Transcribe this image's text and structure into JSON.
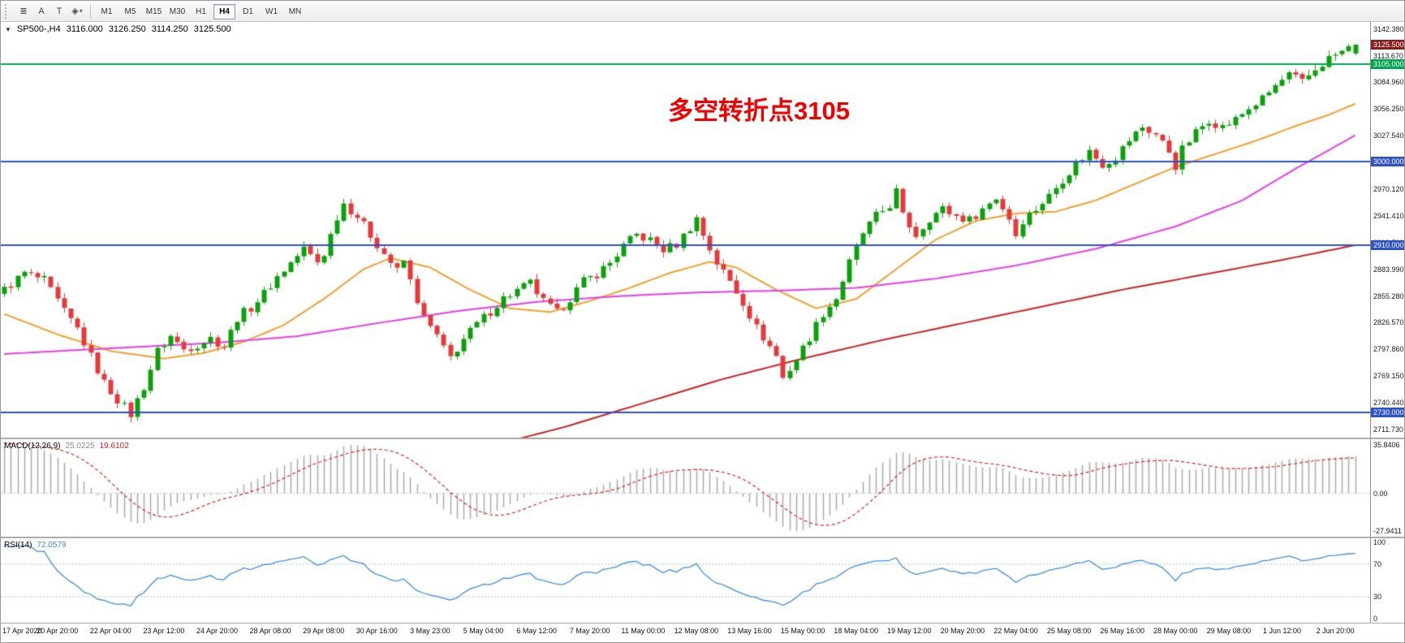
{
  "toolbar": {
    "tools": [
      {
        "name": "chart-list-button",
        "glyph": "≣"
      },
      {
        "name": "text-label-button",
        "glyph": "A"
      },
      {
        "name": "text-tool-button",
        "glyph": "T"
      },
      {
        "name": "shapes-dropdown-button",
        "glyph": "◈",
        "caret": "▾"
      }
    ],
    "timeframes": [
      "M1",
      "M5",
      "M15",
      "M30",
      "H1",
      "H4",
      "D1",
      "W1",
      "MN"
    ],
    "active_timeframe": "H4"
  },
  "quote": {
    "collapse_glyph": "▼",
    "symbol_period": "SP500-,H4",
    "open": "3116.000",
    "high": "3126.250",
    "low": "3114.250",
    "close": "3125.500"
  },
  "annotation": {
    "text": "多空转折点3105",
    "color": "#f10000"
  },
  "price_axis": {
    "min": 2703,
    "max": 3150,
    "ticks": [
      "3142.380",
      "3113.670",
      "3084.960",
      "3056.250",
      "3027.540",
      "2998.830",
      "2970.120",
      "2941.410",
      "2912.700",
      "2883.990",
      "2855.280",
      "2826.570",
      "2797.860",
      "2769.150",
      "2740.440",
      "2711.730"
    ],
    "badges": [
      {
        "label": "3125.500",
        "price": 3125.5,
        "color": "#8b1c1c"
      },
      {
        "label": "3105.000",
        "price": 3105,
        "color": "#00a651"
      },
      {
        "label": "3000.000",
        "price": 3000,
        "color": "#2e52c8"
      },
      {
        "label": "2910.000",
        "price": 2910,
        "color": "#2e52c8"
      },
      {
        "label": "2730.000",
        "price": 2730,
        "color": "#2e52c8"
      }
    ]
  },
  "chart_data": {
    "type": "candlestick",
    "symbol": "SP500-",
    "period": "H4",
    "up_color": "#0da00d",
    "down_color": "#e23b3b",
    "visible_count": 204,
    "prehistory_count": 40,
    "close_waypoints": [
      [
        -40,
        2642
      ],
      [
        -32,
        2700
      ],
      [
        -24,
        2752
      ],
      [
        -16,
        2798
      ],
      [
        -8,
        2840
      ],
      [
        -2,
        2856
      ],
      [
        0,
        2862
      ],
      [
        3,
        2880
      ],
      [
        6,
        2872
      ],
      [
        9,
        2838
      ],
      [
        11,
        2820
      ],
      [
        13,
        2790
      ],
      [
        15,
        2762
      ],
      [
        17,
        2744
      ],
      [
        19,
        2728
      ],
      [
        21,
        2758
      ],
      [
        23,
        2796
      ],
      [
        25,
        2812
      ],
      [
        27,
        2798
      ],
      [
        29,
        2803
      ],
      [
        31,
        2810
      ],
      [
        33,
        2801
      ],
      [
        35,
        2832
      ],
      [
        37,
        2843
      ],
      [
        39,
        2858
      ],
      [
        41,
        2876
      ],
      [
        43,
        2891
      ],
      [
        45,
        2906
      ],
      [
        47,
        2892
      ],
      [
        48,
        2901
      ],
      [
        50,
        2941
      ],
      [
        51,
        2955
      ],
      [
        53,
        2941
      ],
      [
        55,
        2921
      ],
      [
        57,
        2901
      ],
      [
        59,
        2882
      ],
      [
        60,
        2893
      ],
      [
        61,
        2871
      ],
      [
        63,
        2831
      ],
      [
        65,
        2812
      ],
      [
        66,
        2798
      ],
      [
        67,
        2789
      ],
      [
        69,
        2809
      ],
      [
        71,
        2825
      ],
      [
        73,
        2839
      ],
      [
        75,
        2853
      ],
      [
        77,
        2861
      ],
      [
        79,
        2869
      ],
      [
        81,
        2849
      ],
      [
        83,
        2837
      ],
      [
        85,
        2853
      ],
      [
        87,
        2871
      ],
      [
        89,
        2879
      ],
      [
        91,
        2891
      ],
      [
        93,
        2909
      ],
      [
        95,
        2921
      ],
      [
        97,
        2915
      ],
      [
        99,
        2905
      ],
      [
        101,
        2911
      ],
      [
        103,
        2929
      ],
      [
        104,
        2939
      ],
      [
        105,
        2921
      ],
      [
        107,
        2891
      ],
      [
        109,
        2871
      ],
      [
        111,
        2849
      ],
      [
        113,
        2821
      ],
      [
        115,
        2801
      ],
      [
        116,
        2791
      ],
      [
        117,
        2767
      ],
      [
        119,
        2787
      ],
      [
        121,
        2811
      ],
      [
        123,
        2837
      ],
      [
        125,
        2853
      ],
      [
        127,
        2891
      ],
      [
        129,
        2923
      ],
      [
        131,
        2941
      ],
      [
        133,
        2953
      ],
      [
        134,
        2968
      ],
      [
        135,
        2941
      ],
      [
        137,
        2921
      ],
      [
        139,
        2939
      ],
      [
        141,
        2949
      ],
      [
        143,
        2941
      ],
      [
        145,
        2937
      ],
      [
        147,
        2949
      ],
      [
        149,
        2961
      ],
      [
        151,
        2939
      ],
      [
        152,
        2921
      ],
      [
        153,
        2937
      ],
      [
        155,
        2949
      ],
      [
        157,
        2963
      ],
      [
        159,
        2981
      ],
      [
        161,
        2997
      ],
      [
        163,
        3011
      ],
      [
        165,
        2997
      ],
      [
        167,
        3005
      ],
      [
        169,
        3023
      ],
      [
        171,
        3037
      ],
      [
        173,
        3029
      ],
      [
        175,
        3011
      ],
      [
        176,
        2995
      ],
      [
        177,
        3013
      ],
      [
        179,
        3031
      ],
      [
        181,
        3045
      ],
      [
        183,
        3037
      ],
      [
        185,
        3045
      ],
      [
        187,
        3057
      ],
      [
        189,
        3067
      ],
      [
        191,
        3081
      ],
      [
        193,
        3093
      ],
      [
        195,
        3085
      ],
      [
        197,
        3099
      ],
      [
        199,
        3111
      ],
      [
        201,
        3118
      ],
      [
        203,
        3125.5
      ]
    ],
    "levels": [
      {
        "price": 3105,
        "color": "#00a651"
      },
      {
        "price": 3000,
        "color": "#2e52c8"
      },
      {
        "price": 2910,
        "color": "#2e52c8"
      },
      {
        "price": 2730,
        "color": "#2e52c8"
      }
    ],
    "moving_averages": [
      {
        "name": "ma-fast-orange",
        "color": "#f2a02e",
        "points": [
          [
            0,
            2836
          ],
          [
            8,
            2814
          ],
          [
            16,
            2796
          ],
          [
            24,
            2788
          ],
          [
            30,
            2794
          ],
          [
            36,
            2806
          ],
          [
            42,
            2824
          ],
          [
            48,
            2852
          ],
          [
            54,
            2884
          ],
          [
            58,
            2896
          ],
          [
            64,
            2886
          ],
          [
            70,
            2862
          ],
          [
            76,
            2842
          ],
          [
            82,
            2838
          ],
          [
            88,
            2850
          ],
          [
            94,
            2864
          ],
          [
            100,
            2880
          ],
          [
            106,
            2892
          ],
          [
            110,
            2886
          ],
          [
            116,
            2862
          ],
          [
            122,
            2842
          ],
          [
            128,
            2852
          ],
          [
            134,
            2884
          ],
          [
            140,
            2916
          ],
          [
            146,
            2936
          ],
          [
            152,
            2944
          ],
          [
            158,
            2946
          ],
          [
            164,
            2958
          ],
          [
            170,
            2976
          ],
          [
            176,
            2994
          ],
          [
            182,
            3008
          ],
          [
            188,
            3022
          ],
          [
            194,
            3038
          ],
          [
            199,
            3050
          ],
          [
            203,
            3062
          ]
        ]
      },
      {
        "name": "ma-mid-magenta",
        "color": "#e83ce8",
        "points": [
          [
            0,
            2793
          ],
          [
            16,
            2799
          ],
          [
            32,
            2805
          ],
          [
            44,
            2812
          ],
          [
            56,
            2826
          ],
          [
            68,
            2839
          ],
          [
            80,
            2849
          ],
          [
            92,
            2855
          ],
          [
            104,
            2859
          ],
          [
            116,
            2861
          ],
          [
            128,
            2864
          ],
          [
            140,
            2874
          ],
          [
            152,
            2888
          ],
          [
            164,
            2906
          ],
          [
            176,
            2930
          ],
          [
            186,
            2958
          ],
          [
            194,
            2992
          ],
          [
            203,
            3028
          ]
        ]
      },
      {
        "name": "ma-slow-red",
        "color": "#cc2222",
        "points": [
          [
            60,
            2668
          ],
          [
            72,
            2692
          ],
          [
            84,
            2714
          ],
          [
            96,
            2740
          ],
          [
            108,
            2766
          ],
          [
            120,
            2788
          ],
          [
            132,
            2808
          ],
          [
            144,
            2826
          ],
          [
            156,
            2844
          ],
          [
            168,
            2862
          ],
          [
            180,
            2878
          ],
          [
            192,
            2894
          ],
          [
            203,
            2910
          ]
        ]
      }
    ],
    "render": {
      "spacing": 8.2,
      "body": 6,
      "wiggle": 5,
      "wick": 6
    }
  },
  "macd": {
    "label": "MACD(12,26,9)",
    "value_main": "25.0225",
    "value_signal": "19.6102",
    "fast": 12,
    "slow": 26,
    "signal": 9,
    "histogram_color": "#adadad",
    "signal_color": "#e02020",
    "max_value": 35.8406,
    "min_value": -27.9411,
    "axis_min": -32,
    "axis_max": 40,
    "ticks": [
      {
        "label": "35.8406",
        "value": 35.8406
      },
      {
        "label": "0.00",
        "value": 0
      },
      {
        "label": "-27.9411",
        "value": -27.9411
      }
    ]
  },
  "rsi": {
    "label": "RSI(14)",
    "value": "72.0579",
    "period": 14,
    "line_color": "#3f8edc",
    "axis_min": -2,
    "axis_max": 102,
    "levels": [
      70,
      30
    ],
    "ticks": [
      {
        "label": "100",
        "value": 100
      },
      {
        "label": "70",
        "value": 70
      },
      {
        "label": "30",
        "value": 30
      },
      {
        "label": "0",
        "value": 0
      }
    ]
  },
  "time_axis": {
    "label_step": 8,
    "labels": [
      "17 Apr 2020",
      "20 Apr 20:00",
      "22 Apr 04:00",
      "23 Apr 12:00",
      "24 Apr 20:00",
      "28 Apr 08:00",
      "29 Apr 08:00",
      "30 Apr 16:00",
      "3 May 23:00",
      "5 May 04:00",
      "6 May 12:00",
      "7 May 20:00",
      "11 May 00:00",
      "12 May 08:00",
      "13 May 16:00",
      "15 May 00:00",
      "18 May 04:00",
      "19 May 12:00",
      "20 May 20:00",
      "22 May 04:00",
      "25 May 08:00",
      "26 May 16:00",
      "28 May 00:00",
      "29 May 08:00",
      "1 Jun 12:00",
      "2 Jun 20:00"
    ]
  }
}
